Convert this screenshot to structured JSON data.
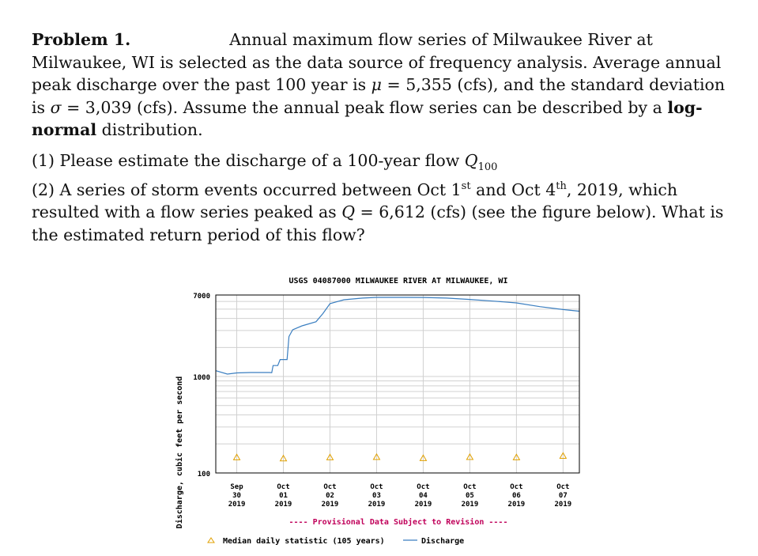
{
  "problem": {
    "label": "Problem 1.",
    "text_line1": "Annual maximum flow series of Milwaukee River at",
    "text_rest_a": "Milwaukee, WI is selected as the data source of frequency analysis. Average annual peak discharge over the past 100 year is ",
    "mu_symbol": "μ",
    "mu_value": " = 5,355 (cfs), and the standard deviation is ",
    "sigma_symbol": "σ",
    "sigma_value": " = 3,039 (cfs). Assume the annual peak flow series can be described by a ",
    "lognormal": "log-normal",
    "ending": " distribution."
  },
  "question1": {
    "text": "(1) Please estimate the discharge of a 100-year flow ",
    "q_symbol": "Q",
    "q_sub": "100"
  },
  "question2": {
    "text_a": "(2) A series of storm events occurred between Oct 1",
    "sup1": "st",
    "text_b": " and Oct 4",
    "sup2": "th",
    "text_c": ", 2019, which resulted with a flow series peaked as ",
    "q_symbol": "Q",
    "q_value": " = 6,612 (cfs) (see the figure below). What is the estimated return period of this flow?"
  },
  "chart_data": {
    "type": "line",
    "title": "USGS 04087000 MILWAUKEE RIVER AT MILWAUKEE, WI",
    "ylabel": "Discharge, cubic feet per second",
    "y_scale": "log",
    "ylim": [
      100,
      7000
    ],
    "y_ticks": [
      "7000",
      "1000",
      "100"
    ],
    "x_ticks": [
      {
        "mon": "Sep",
        "day": "30",
        "year": "2019"
      },
      {
        "mon": "Oct",
        "day": "01",
        "year": "2019"
      },
      {
        "mon": "Oct",
        "day": "02",
        "year": "2019"
      },
      {
        "mon": "Oct",
        "day": "03",
        "year": "2019"
      },
      {
        "mon": "Oct",
        "day": "04",
        "year": "2019"
      },
      {
        "mon": "Oct",
        "day": "05",
        "year": "2019"
      },
      {
        "mon": "Oct",
        "day": "06",
        "year": "2019"
      },
      {
        "mon": "Oct",
        "day": "07",
        "year": "2019"
      }
    ],
    "xlim": [
      -0.45,
      7.35
    ],
    "discharge_series": {
      "name": "Discharge",
      "color": "#3a7ec0",
      "points": [
        [
          -0.45,
          1150
        ],
        [
          -0.2,
          1060
        ],
        [
          0.0,
          1090
        ],
        [
          0.3,
          1100
        ],
        [
          0.7,
          1100
        ],
        [
          0.75,
          1095
        ],
        [
          0.78,
          1300
        ],
        [
          0.88,
          1300
        ],
        [
          0.93,
          1500
        ],
        [
          1.08,
          1500
        ],
        [
          1.12,
          2600
        ],
        [
          1.2,
          3050
        ],
        [
          1.4,
          3350
        ],
        [
          1.7,
          3700
        ],
        [
          1.85,
          4500
        ],
        [
          2.0,
          5700
        ],
        [
          2.3,
          6250
        ],
        [
          2.7,
          6500
        ],
        [
          3.0,
          6612
        ],
        [
          3.6,
          6612
        ],
        [
          4.0,
          6600
        ],
        [
          4.5,
          6500
        ],
        [
          5.0,
          6300
        ],
        [
          5.5,
          6050
        ],
        [
          6.0,
          5800
        ],
        [
          6.5,
          5300
        ],
        [
          7.0,
          4950
        ],
        [
          7.35,
          4750
        ]
      ]
    },
    "median_series": {
      "name": "Median daily statistic (105 years)",
      "color": "#e0a000",
      "points": [
        [
          0,
          145
        ],
        [
          1,
          141
        ],
        [
          2,
          145
        ],
        [
          3,
          146
        ],
        [
          4,
          142
        ],
        [
          5,
          146
        ],
        [
          6,
          145
        ],
        [
          7,
          150
        ]
      ]
    },
    "provisional_note": "---- Provisional Data Subject to Revision ----",
    "note_color": "#c0005a"
  }
}
